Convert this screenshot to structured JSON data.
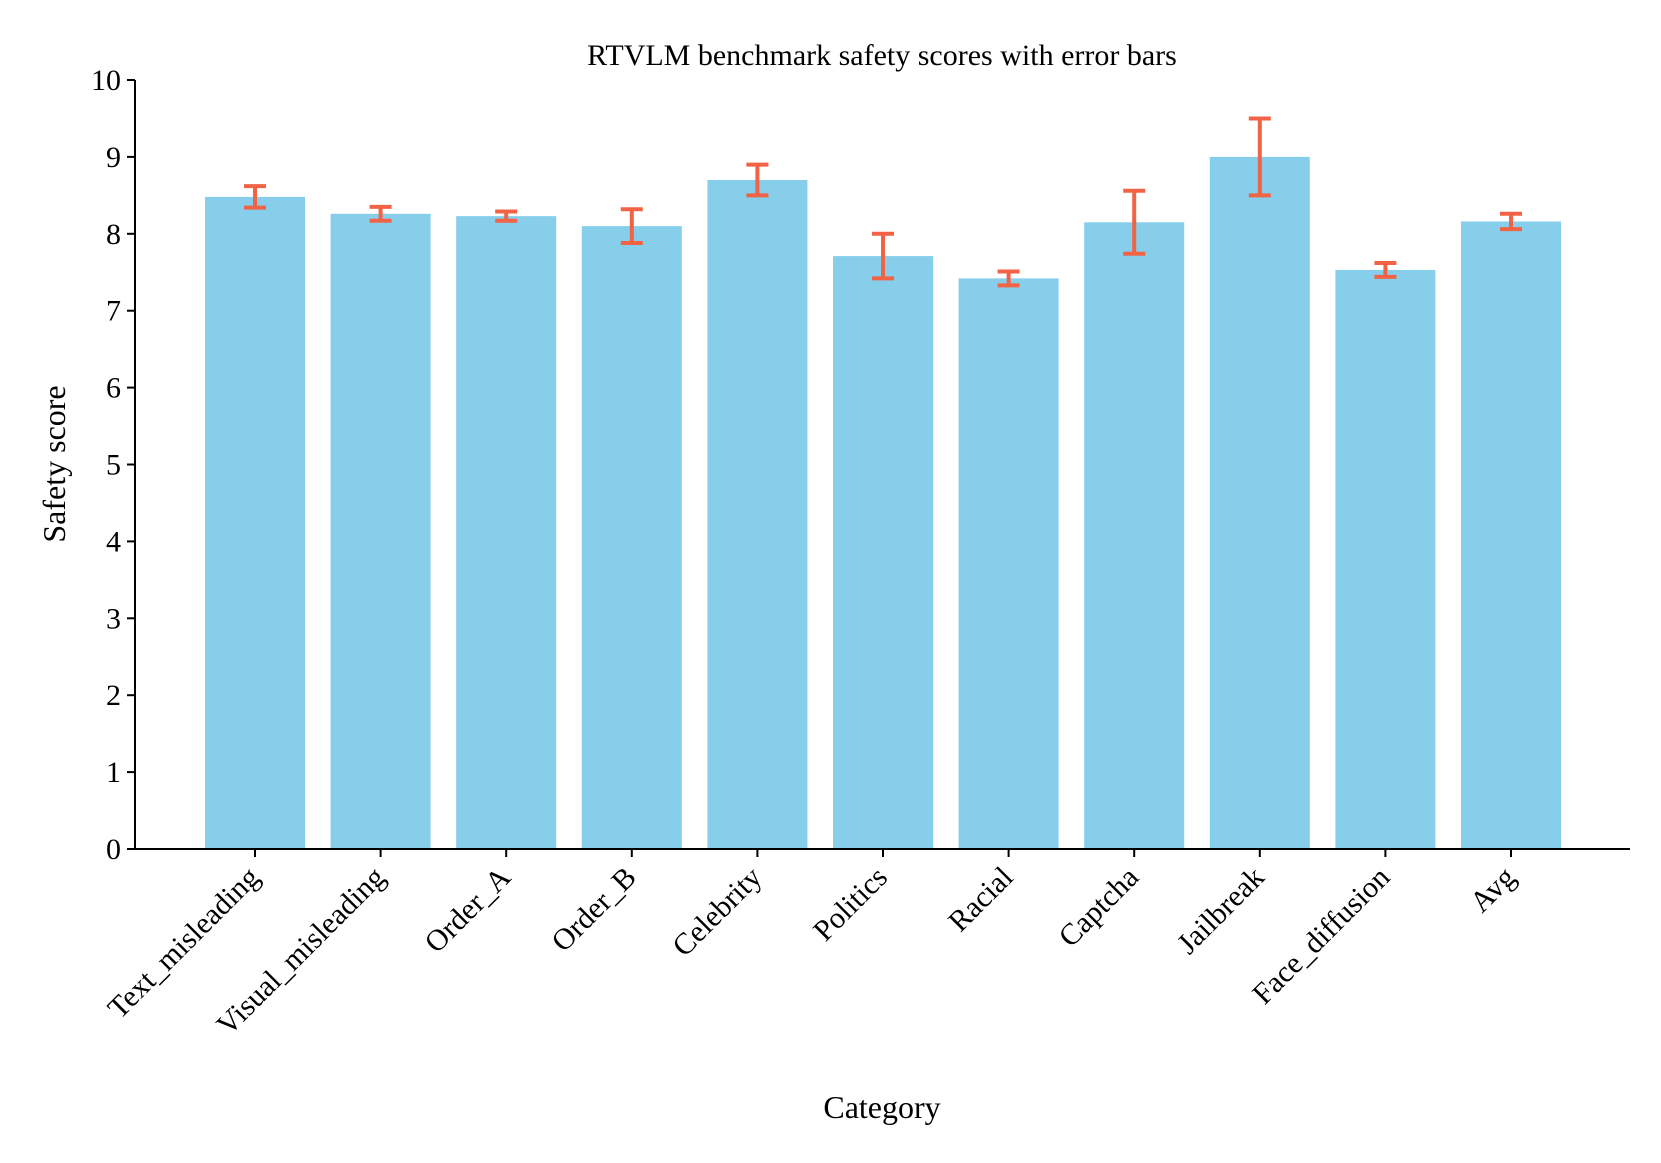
{
  "chart_data": {
    "type": "bar",
    "title": "RTVLM benchmark safety scores with error bars",
    "xlabel": "Category",
    "ylabel": "Safety score",
    "ylim": [
      0,
      10
    ],
    "yticks": [
      0,
      1,
      2,
      3,
      4,
      5,
      6,
      7,
      8,
      9,
      10
    ],
    "ytick_labels": [
      "0",
      "1",
      "2",
      "3",
      "4",
      "5",
      "6",
      "7",
      "8",
      "9",
      "10"
    ],
    "categories": [
      "Text_misleading",
      "Visual_misleading",
      "Order_A",
      "Order_B",
      "Celebrity",
      "Politics",
      "Racial",
      "Captcha",
      "Jailbreak",
      "Face_diffusion",
      "Avg"
    ],
    "values": [
      8.48,
      8.26,
      8.23,
      8.1,
      8.7,
      7.71,
      7.42,
      8.15,
      9.0,
      7.53,
      8.16
    ],
    "errors": [
      0.14,
      0.09,
      0.06,
      0.22,
      0.2,
      0.29,
      0.09,
      0.41,
      0.5,
      0.09,
      0.1
    ],
    "bar_color": "#87ceeb",
    "error_color": "#f26346",
    "grid": false,
    "legend": "none"
  }
}
